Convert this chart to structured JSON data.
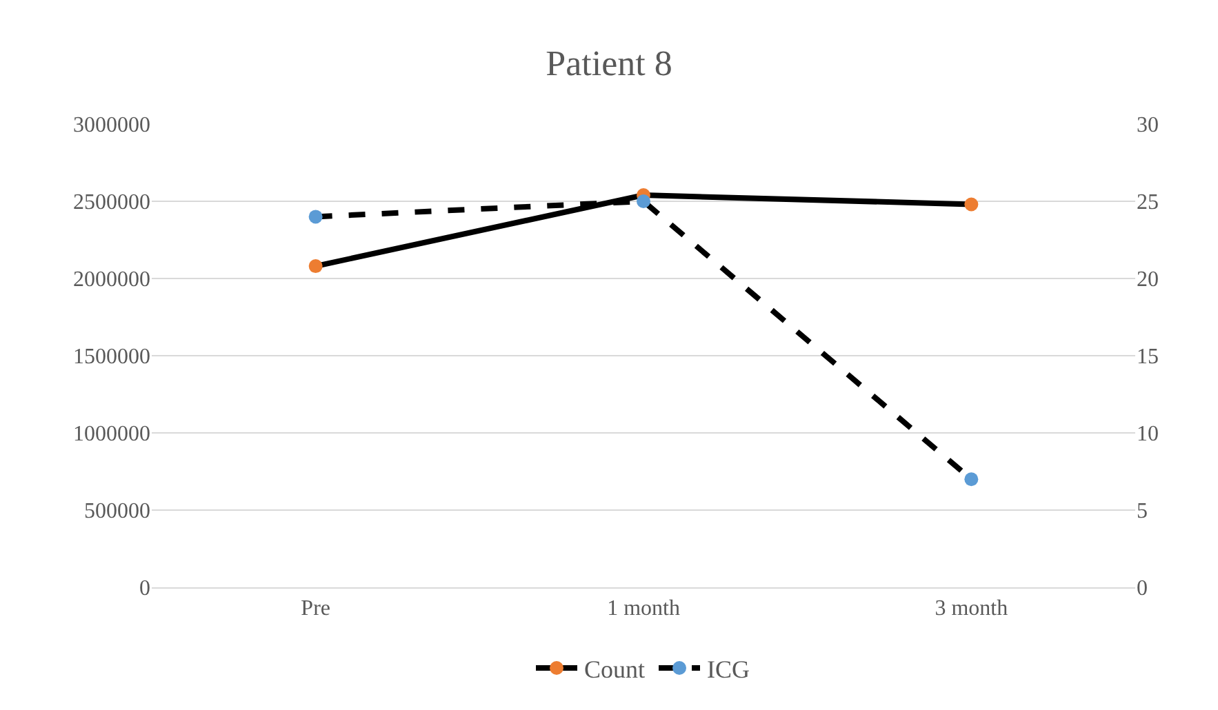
{
  "chart_data": {
    "type": "line",
    "title": "Patient 8",
    "categories": [
      "Pre",
      "1 month",
      "3 month"
    ],
    "series": [
      {
        "name": "Count",
        "color": "#ed7d31",
        "line_style": "solid",
        "values": [
          2080000,
          2540000,
          2480000
        ]
      },
      {
        "name": "ICG",
        "color": "#5b9bd5",
        "line_style": "dashed",
        "axis": "y2",
        "values": [
          24,
          25,
          7
        ]
      }
    ],
    "ylim": [
      0,
      3000000
    ],
    "yticks": [
      0,
      500000,
      1000000,
      1500000,
      2000000,
      2500000,
      3000000
    ],
    "y2lim": [
      0,
      30
    ],
    "y2ticks": [
      0,
      5,
      10,
      15,
      20,
      25,
      30
    ],
    "grid": "y",
    "legend": "bottom",
    "marker": "circle"
  }
}
